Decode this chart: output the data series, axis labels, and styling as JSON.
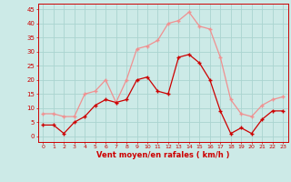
{
  "x": [
    0,
    1,
    2,
    3,
    4,
    5,
    6,
    7,
    8,
    9,
    10,
    11,
    12,
    13,
    14,
    15,
    16,
    17,
    18,
    19,
    20,
    21,
    22,
    23
  ],
  "wind_avg": [
    4,
    4,
    1,
    5,
    7,
    11,
    13,
    12,
    13,
    20,
    21,
    16,
    15,
    28,
    29,
    26,
    20,
    9,
    1,
    3,
    1,
    6,
    9,
    9
  ],
  "wind_gust": [
    8,
    8,
    7,
    7,
    15,
    16,
    20,
    12,
    20,
    31,
    32,
    34,
    40,
    41,
    44,
    39,
    38,
    28,
    13,
    8,
    7,
    11,
    13,
    14
  ],
  "background_color": "#cceae7",
  "grid_color": "#aad4d0",
  "avg_color": "#cc0000",
  "gust_color": "#f09090",
  "xlabel": "Vent moyen/en rafales ( km/h )",
  "xlabel_color": "#cc0000",
  "yticks": [
    0,
    5,
    10,
    15,
    20,
    25,
    30,
    35,
    40,
    45
  ],
  "ylim": [
    -2,
    47
  ],
  "xlim": [
    -0.5,
    23.5
  ]
}
